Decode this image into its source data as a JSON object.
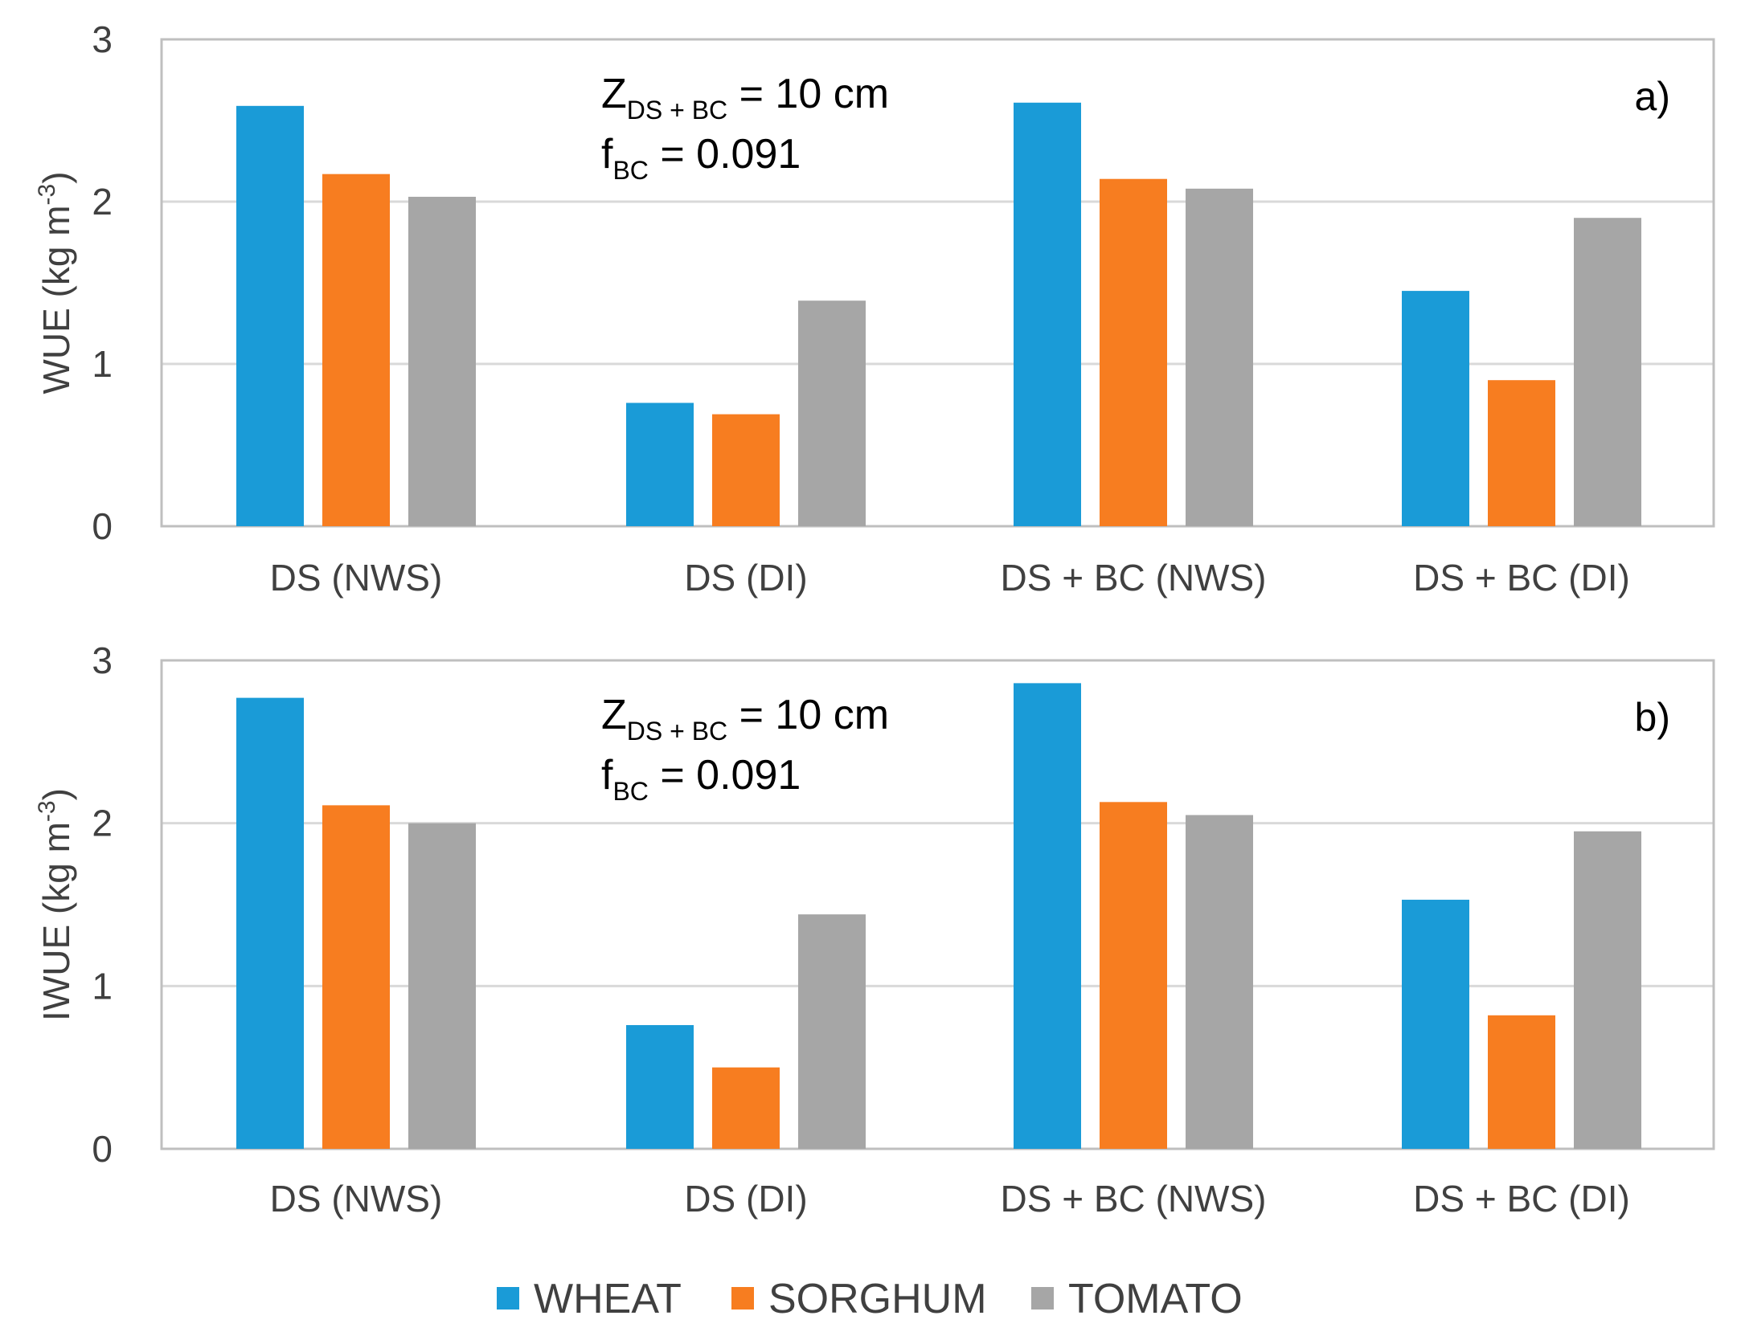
{
  "colors": {
    "WHEAT": "#1a9bd7",
    "SORGHUM": "#f77d20",
    "TOMATO": "#a6a6a6",
    "grid": "#d9d9d9",
    "frame": "#bfbfbf"
  },
  "legend": [
    "WHEAT",
    "SORGHUM",
    "TOMATO"
  ],
  "chart_data": [
    {
      "type": "bar",
      "panel_label": "a)",
      "ylabel": {
        "main": "WUE (kg m",
        "sup": "-3",
        "close": ")"
      },
      "ylim": [
        0,
        3
      ],
      "yticks": [
        "0",
        "1",
        "2",
        "3"
      ],
      "categories": [
        "DS (NWS)",
        "DS (DI)",
        "DS + BC (NWS)",
        "DS + BC (DI)"
      ],
      "series": [
        {
          "name": "WHEAT",
          "values": [
            2.59,
            0.76,
            2.61,
            1.45
          ]
        },
        {
          "name": "SORGHUM",
          "values": [
            2.17,
            0.69,
            2.14,
            0.9
          ]
        },
        {
          "name": "TOMATO",
          "values": [
            2.03,
            1.39,
            2.08,
            1.9
          ]
        }
      ],
      "annotation": {
        "line1": {
          "base": "Z",
          "sub": "DS + BC",
          "rest": " = 10 cm"
        },
        "line2": {
          "base": "f",
          "sub": "BC",
          "rest": " = 0.091"
        }
      }
    },
    {
      "type": "bar",
      "panel_label": "b)",
      "ylabel": {
        "main": "IWUE (kg m",
        "sup": "-3",
        "close": ")"
      },
      "ylim": [
        0,
        3
      ],
      "yticks": [
        "0",
        "1",
        "2",
        "3"
      ],
      "categories": [
        "DS (NWS)",
        "DS (DI)",
        "DS + BC (NWS)",
        "DS + BC (DI)"
      ],
      "series": [
        {
          "name": "WHEAT",
          "values": [
            2.77,
            0.76,
            2.86,
            1.53
          ]
        },
        {
          "name": "SORGHUM",
          "values": [
            2.11,
            0.5,
            2.13,
            0.82
          ]
        },
        {
          "name": "TOMATO",
          "values": [
            2.0,
            1.44,
            2.05,
            1.95
          ]
        }
      ],
      "annotation": {
        "line1": {
          "base": "Z",
          "sub": "DS + BC",
          "rest": " = 10 cm"
        },
        "line2": {
          "base": "f",
          "sub": "BC",
          "rest": " = 0.091"
        }
      }
    }
  ]
}
